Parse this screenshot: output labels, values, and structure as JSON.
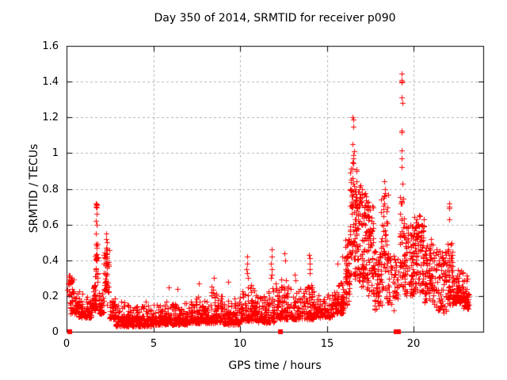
{
  "figure": {
    "title": "Day 350 of 2014, SRMTID for receiver p090",
    "xlabel": "GPS time / hours",
    "ylabel": "SRMTID / TECUs"
  },
  "colors": {
    "marker": "#ff0000",
    "grid": "#b0b0b0",
    "axis": "#000000",
    "background": "#ffffff",
    "text": "#000000"
  },
  "chart_data": {
    "type": "scatter",
    "title": "Day 350 of 2014, SRMTID for receiver p090",
    "xlabel": "GPS time / hours",
    "ylabel": "SRMTID / TECUs",
    "xlim": [
      0,
      24
    ],
    "ylim": [
      0,
      1.6
    ],
    "xticks": [
      {
        "v": 0,
        "label": "0"
      },
      {
        "v": 5,
        "label": "5"
      },
      {
        "v": 10,
        "label": "10"
      },
      {
        "v": 15,
        "label": "15"
      },
      {
        "v": 20,
        "label": "20"
      }
    ],
    "yticks": [
      {
        "v": 0,
        "label": "0"
      },
      {
        "v": 0.2,
        "label": "0.2"
      },
      {
        "v": 0.4,
        "label": "0.4"
      },
      {
        "v": 0.6,
        "label": "0.6"
      },
      {
        "v": 0.8,
        "label": "0.8"
      },
      {
        "v": 1,
        "label": "1"
      },
      {
        "v": 1.2,
        "label": "1.2"
      },
      {
        "v": 1.4,
        "label": "1.4"
      },
      {
        "v": 1.6,
        "label": "1.6"
      }
    ],
    "grid": true,
    "legend": "none",
    "marker": {
      "shape": "plus",
      "size": 7,
      "color": "#ff0000"
    },
    "seed": 350,
    "envelope_bands": [
      {
        "x0": 0.05,
        "x1": 0.4,
        "ymin": 0.15,
        "ymax": 0.33,
        "n": 30,
        "spread": "uniform"
      },
      {
        "x0": 0.2,
        "x1": 0.75,
        "ymin": 0.1,
        "ymax": 0.28,
        "n": 50,
        "spread": "low"
      },
      {
        "x0": 0.7,
        "x1": 1.45,
        "ymin": 0.08,
        "ymax": 0.24,
        "n": 85,
        "spread": "low"
      },
      {
        "x0": 1.45,
        "x1": 1.68,
        "ymin": 0.12,
        "ymax": 0.32,
        "n": 40,
        "spread": "low"
      },
      {
        "x0": 1.62,
        "x1": 1.82,
        "ymin": 0.26,
        "ymax": 0.5,
        "n": 22,
        "spread": "uniform"
      },
      {
        "x0": 1.85,
        "x1": 2.15,
        "ymin": 0.1,
        "ymax": 0.3,
        "n": 40,
        "spread": "low"
      },
      {
        "x0": 2.15,
        "x1": 2.45,
        "ymin": 0.14,
        "ymax": 0.46,
        "n": 45,
        "spread": "uniform"
      },
      {
        "x0": 2.45,
        "x1": 2.85,
        "ymin": 0.07,
        "ymax": 0.22,
        "n": 45,
        "spread": "low"
      },
      {
        "x0": 2.85,
        "x1": 5.0,
        "ymin": 0.03,
        "ymax": 0.18,
        "n": 280,
        "spread": "low"
      },
      {
        "x0": 5.0,
        "x1": 7.0,
        "ymin": 0.04,
        "ymax": 0.19,
        "n": 260,
        "spread": "low"
      },
      {
        "x0": 7.0,
        "x1": 8.0,
        "ymin": 0.05,
        "ymax": 0.23,
        "n": 120,
        "spread": "low"
      },
      {
        "x0": 8.0,
        "x1": 9.0,
        "ymin": 0.05,
        "ymax": 0.27,
        "n": 120,
        "spread": "low"
      },
      {
        "x0": 9.0,
        "x1": 10.0,
        "ymin": 0.04,
        "ymax": 0.21,
        "n": 115,
        "spread": "low"
      },
      {
        "x0": 10.0,
        "x1": 11.0,
        "ymin": 0.06,
        "ymax": 0.3,
        "n": 120,
        "spread": "low"
      },
      {
        "x0": 11.0,
        "x1": 12.0,
        "ymin": 0.05,
        "ymax": 0.26,
        "n": 110,
        "spread": "low"
      },
      {
        "x0": 12.0,
        "x1": 12.9,
        "ymin": 0.07,
        "ymax": 0.34,
        "n": 100,
        "spread": "low"
      },
      {
        "x0": 12.9,
        "x1": 14.2,
        "ymin": 0.07,
        "ymax": 0.28,
        "n": 125,
        "spread": "low"
      },
      {
        "x0": 14.2,
        "x1": 15.3,
        "ymin": 0.08,
        "ymax": 0.23,
        "n": 105,
        "spread": "low"
      },
      {
        "x0": 15.3,
        "x1": 16.0,
        "ymin": 0.1,
        "ymax": 0.34,
        "n": 90,
        "spread": "low"
      },
      {
        "x0": 16.0,
        "x1": 16.3,
        "ymin": 0.15,
        "ymax": 0.52,
        "n": 50,
        "spread": "uniform"
      },
      {
        "x0": 16.3,
        "x1": 16.75,
        "ymin": 0.28,
        "ymax": 0.97,
        "n": 95,
        "spread": "uniform"
      },
      {
        "x0": 16.75,
        "x1": 17.3,
        "ymin": 0.25,
        "ymax": 0.82,
        "n": 95,
        "spread": "uniform"
      },
      {
        "x0": 17.3,
        "x1": 17.7,
        "ymin": 0.2,
        "ymax": 0.73,
        "n": 70,
        "spread": "uniform"
      },
      {
        "x0": 17.7,
        "x1": 18.1,
        "ymin": 0.12,
        "ymax": 0.46,
        "n": 55,
        "spread": "uniform"
      },
      {
        "x0": 18.1,
        "x1": 18.5,
        "ymin": 0.15,
        "ymax": 0.78,
        "n": 60,
        "spread": "uniform"
      },
      {
        "x0": 18.5,
        "x1": 19.15,
        "ymin": 0.12,
        "ymax": 0.43,
        "n": 55,
        "spread": "uniform"
      },
      {
        "x0": 19.2,
        "x1": 19.45,
        "ymin": 0.25,
        "ymax": 0.8,
        "n": 40,
        "spread": "uniform"
      },
      {
        "x0": 19.45,
        "x1": 20.0,
        "ymin": 0.2,
        "ymax": 0.6,
        "n": 85,
        "spread": "uniform"
      },
      {
        "x0": 20.0,
        "x1": 20.6,
        "ymin": 0.22,
        "ymax": 0.65,
        "n": 95,
        "spread": "uniform"
      },
      {
        "x0": 20.6,
        "x1": 21.3,
        "ymin": 0.15,
        "ymax": 0.5,
        "n": 85,
        "spread": "uniform"
      },
      {
        "x0": 21.3,
        "x1": 21.9,
        "ymin": 0.1,
        "ymax": 0.46,
        "n": 75,
        "spread": "uniform"
      },
      {
        "x0": 21.9,
        "x1": 22.25,
        "ymin": 0.15,
        "ymax": 0.5,
        "n": 60,
        "spread": "uniform"
      },
      {
        "x0": 22.25,
        "x1": 22.85,
        "ymin": 0.16,
        "ymax": 0.4,
        "n": 95,
        "spread": "low"
      },
      {
        "x0": 22.85,
        "x1": 23.15,
        "ymin": 0.13,
        "ymax": 0.34,
        "n": 60,
        "spread": "low"
      }
    ],
    "spike_points": [
      [
        1.7,
        0.72
      ],
      [
        1.72,
        0.715
      ],
      [
        1.74,
        0.71
      ],
      [
        1.71,
        0.7
      ],
      [
        1.73,
        0.695
      ],
      [
        1.72,
        0.66
      ],
      [
        1.71,
        0.62
      ],
      [
        1.73,
        0.6
      ],
      [
        1.7,
        0.55
      ],
      [
        1.72,
        0.47
      ],
      [
        1.68,
        0.42
      ],
      [
        1.74,
        0.41
      ],
      [
        1.7,
        0.35
      ],
      [
        1.76,
        0.33
      ],
      [
        1.66,
        0.31
      ],
      [
        2.28,
        0.55
      ],
      [
        2.3,
        0.52
      ],
      [
        2.32,
        0.5
      ],
      [
        2.29,
        0.47
      ],
      [
        2.31,
        0.46
      ],
      [
        2.27,
        0.44
      ],
      [
        2.33,
        0.42
      ],
      [
        2.3,
        0.42
      ],
      [
        2.31,
        0.41
      ],
      [
        2.29,
        0.38
      ],
      [
        5.9,
        0.25
      ],
      [
        6.4,
        0.24
      ],
      [
        7.6,
        0.27
      ],
      [
        8.5,
        0.3
      ],
      [
        9.3,
        0.28
      ],
      [
        10.4,
        0.42
      ],
      [
        10.42,
        0.38
      ],
      [
        10.38,
        0.35
      ],
      [
        10.4,
        0.33
      ],
      [
        10.44,
        0.3
      ],
      [
        11.8,
        0.46
      ],
      [
        11.82,
        0.42
      ],
      [
        11.78,
        0.38
      ],
      [
        11.8,
        0.35
      ],
      [
        11.84,
        0.32
      ],
      [
        11.76,
        0.3
      ],
      [
        12.55,
        0.44
      ],
      [
        12.6,
        0.4
      ],
      [
        13.15,
        0.32
      ],
      [
        13.18,
        0.29
      ],
      [
        13.98,
        0.43
      ],
      [
        14.02,
        0.41
      ],
      [
        14.0,
        0.38
      ],
      [
        13.99,
        0.35
      ],
      [
        14.03,
        0.33
      ],
      [
        15.6,
        0.38
      ],
      [
        15.9,
        0.42
      ],
      [
        16.48,
        1.2
      ],
      [
        16.52,
        1.19
      ],
      [
        16.5,
        1.15
      ],
      [
        16.45,
        1.05
      ],
      [
        16.55,
        1.01
      ],
      [
        16.5,
        0.99
      ],
      [
        18.3,
        0.84
      ],
      [
        18.32,
        0.8
      ],
      [
        18.28,
        0.76
      ],
      [
        18.31,
        0.72
      ],
      [
        19.3,
        1.445
      ],
      [
        19.32,
        1.41
      ],
      [
        19.28,
        1.4
      ],
      [
        19.31,
        1.395
      ],
      [
        19.3,
        1.31
      ],
      [
        19.33,
        1.28
      ],
      [
        19.29,
        1.125
      ],
      [
        19.32,
        1.115
      ],
      [
        19.3,
        1.015
      ],
      [
        19.31,
        0.97
      ],
      [
        19.28,
        0.92
      ],
      [
        19.33,
        0.83
      ],
      [
        20.3,
        0.65
      ],
      [
        21.0,
        0.52
      ],
      [
        22.02,
        0.72
      ],
      [
        22.05,
        0.7
      ],
      [
        22.03,
        0.69
      ],
      [
        22.06,
        0.63
      ]
    ],
    "zero_points": [
      0.2,
      12.3,
      19.0,
      19.12
    ]
  }
}
